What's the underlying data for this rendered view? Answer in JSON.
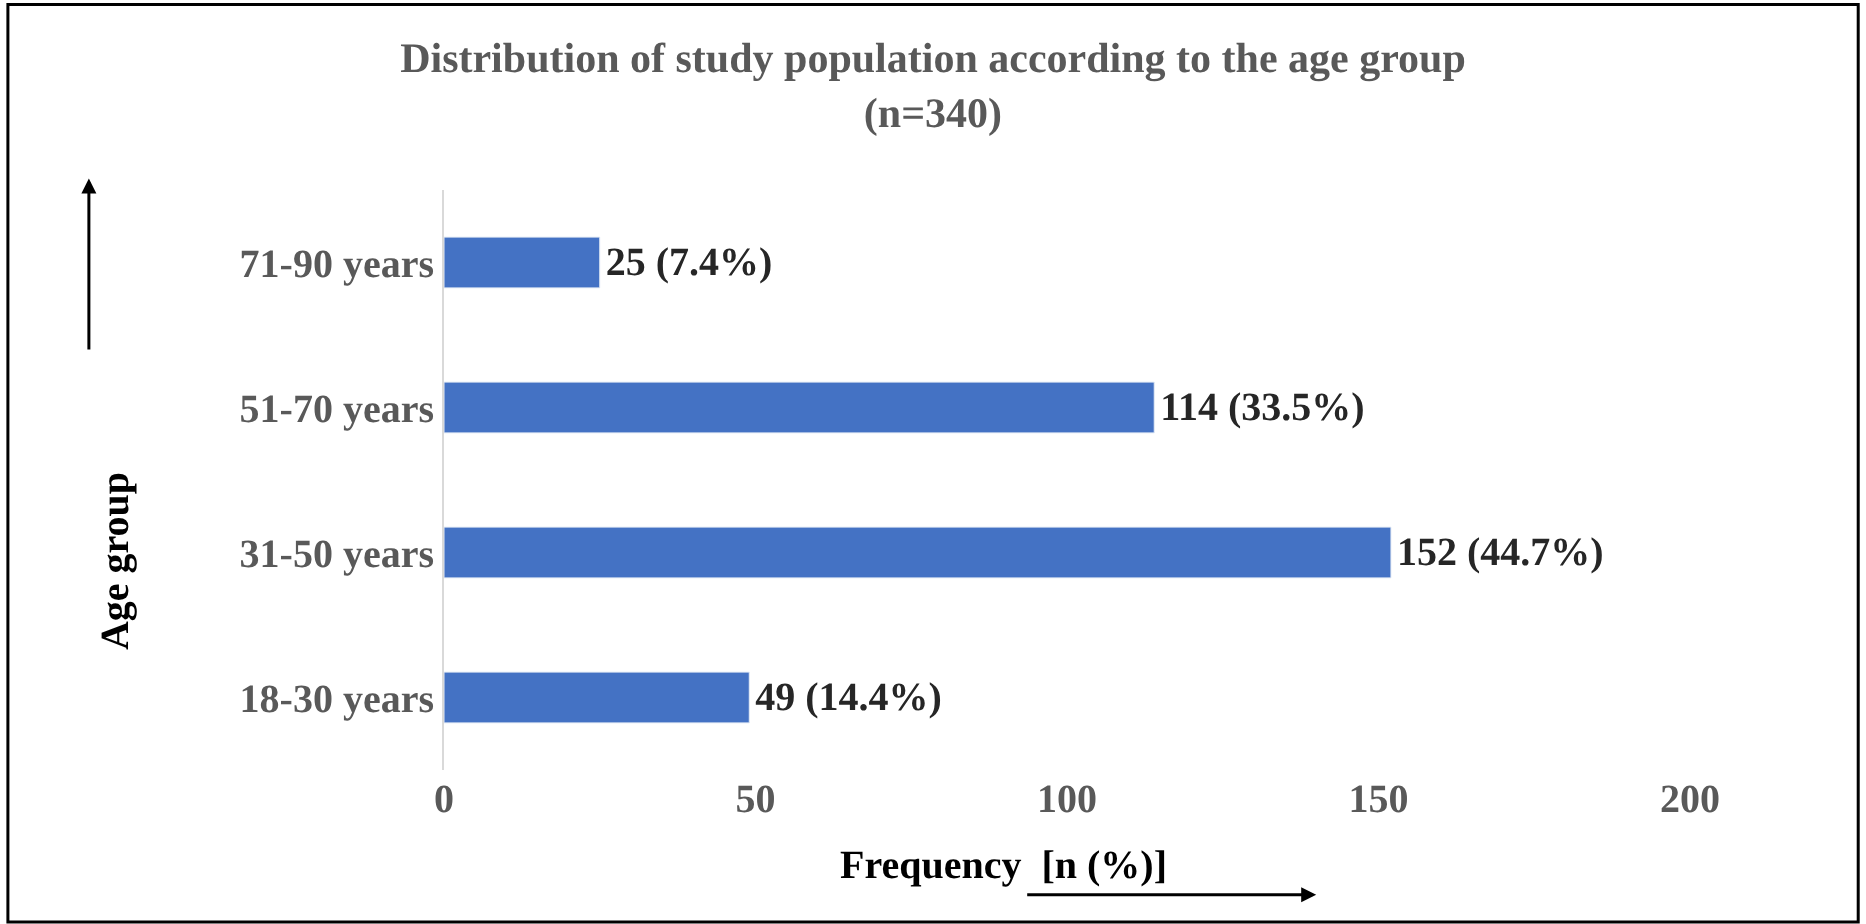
{
  "chart_data": {
    "type": "bar",
    "orientation": "horizontal",
    "title": "Distribution of study population according to the age group\n(n=340)",
    "xlabel": "Frequency  [n (%)]",
    "ylabel": "Age group",
    "categories": [
      "71-90 years",
      "51-70 years",
      "31-50 years",
      "18-30 years"
    ],
    "values": [
      25,
      114,
      152,
      49
    ],
    "value_labels": [
      "25 (7.4%)",
      "114 (33.5%)",
      "152 (44.7%)",
      "49 (14.4%)"
    ],
    "color": "#4472c4",
    "xlim": [
      0,
      200
    ],
    "xticks": [
      0,
      50,
      100,
      150,
      200
    ],
    "legend": false
  }
}
